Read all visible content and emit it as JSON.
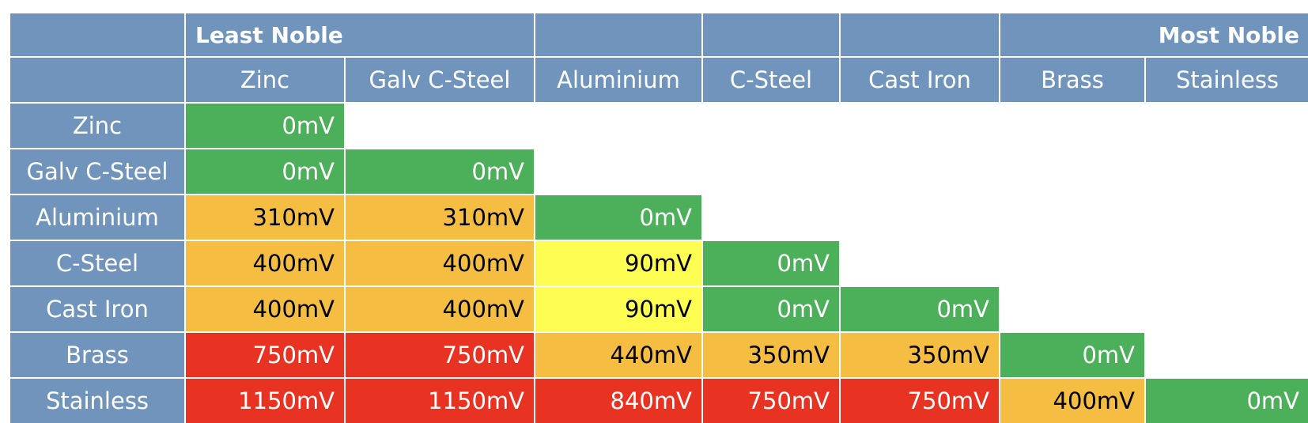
{
  "header": {
    "least_noble": "Least Noble",
    "most_noble": "Most Noble"
  },
  "colors": {
    "header_bg": "#7094bb",
    "green": "#4caf5a",
    "orange": "#f5bd42",
    "yellow": "#fdfd52",
    "red": "#e83222"
  },
  "chart_data": {
    "type": "table",
    "columns": [
      "Zinc",
      "Galv C-Steel",
      "Aluminium",
      "C-Steel",
      "Cast Iron",
      "Brass",
      "Stainless"
    ],
    "rows": [
      {
        "label": "Zinc",
        "values": [
          "0mV"
        ],
        "levels": [
          "green"
        ]
      },
      {
        "label": "Galv C-Steel",
        "values": [
          "0mV",
          "0mV"
        ],
        "levels": [
          "green",
          "green"
        ]
      },
      {
        "label": "Aluminium",
        "values": [
          "310mV",
          "310mV",
          "0mV"
        ],
        "levels": [
          "orange",
          "orange",
          "green"
        ]
      },
      {
        "label": "C-Steel",
        "values": [
          "400mV",
          "400mV",
          "90mV",
          "0mV"
        ],
        "levels": [
          "orange",
          "orange",
          "yellow",
          "green"
        ]
      },
      {
        "label": "Cast Iron",
        "values": [
          "400mV",
          "400mV",
          "90mV",
          "0mV",
          "0mV"
        ],
        "levels": [
          "orange",
          "orange",
          "yellow",
          "green",
          "green"
        ]
      },
      {
        "label": "Brass",
        "values": [
          "750mV",
          "750mV",
          "440mV",
          "350mV",
          "350mV",
          "0mV"
        ],
        "levels": [
          "red",
          "red",
          "orange",
          "orange",
          "orange",
          "green"
        ]
      },
      {
        "label": "Stainless",
        "values": [
          "1150mV",
          "1150mV",
          "840mV",
          "750mV",
          "750mV",
          "400mV",
          "0mV"
        ],
        "levels": [
          "red",
          "red",
          "red",
          "red",
          "red",
          "orange",
          "green"
        ]
      }
    ]
  }
}
